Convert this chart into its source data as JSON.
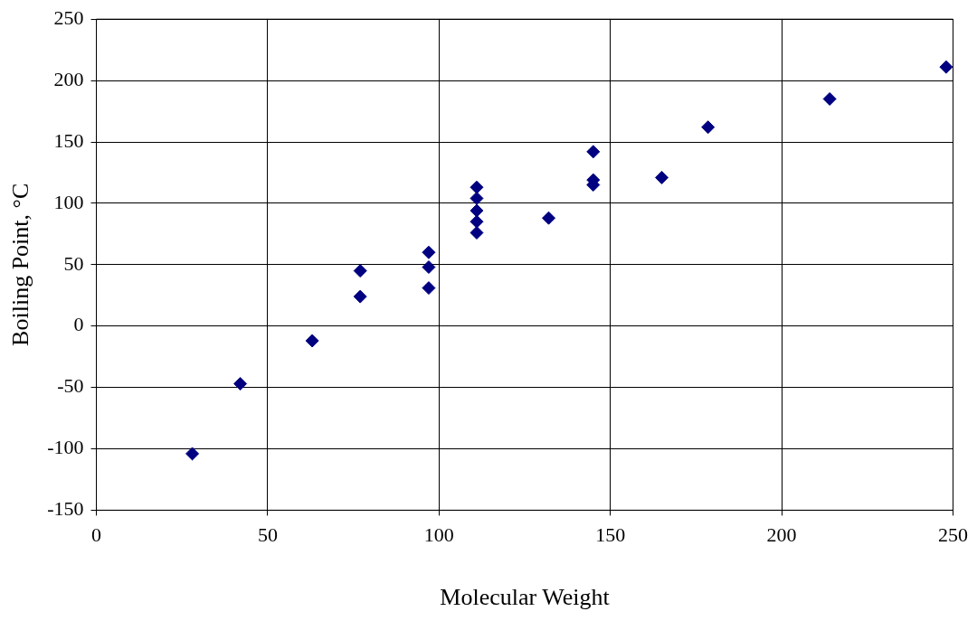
{
  "chart_data": {
    "type": "scatter",
    "xlabel": "Molecular Weight",
    "ylabel": "Boiling Point, °C",
    "x": [
      28,
      42,
      63,
      77,
      77,
      97,
      97,
      97,
      111,
      111,
      111,
      111,
      111,
      132,
      145,
      145,
      145,
      165,
      178.5,
      214,
      248
    ],
    "series": [
      {
        "color": "#000080",
        "values": [
          -104,
          -47,
          -12,
          45,
          24,
          60,
          48,
          31,
          113,
          104,
          94,
          85,
          76,
          88,
          142,
          119,
          115,
          121,
          162,
          185,
          211
        ]
      }
    ],
    "xlim": [
      0,
      250
    ],
    "xticks": [
      0,
      50,
      100,
      150,
      200,
      250
    ],
    "ylim": [
      -150,
      250
    ],
    "yticks": [
      -150,
      -100,
      -50,
      0,
      50,
      100,
      150,
      200,
      250
    ],
    "grid": true,
    "legend": false,
    "marker": "diamond"
  }
}
